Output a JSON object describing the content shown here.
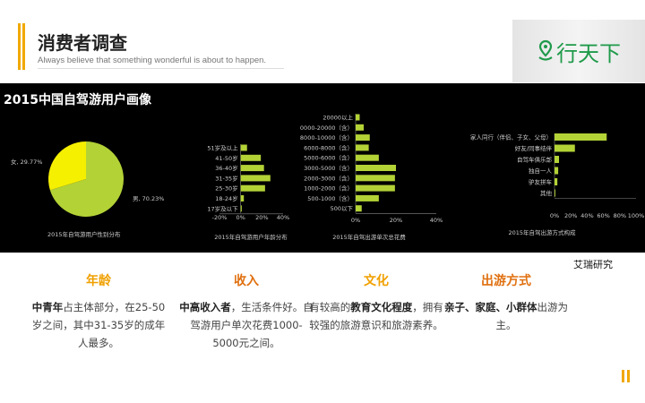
{
  "header": {
    "title": "消费者调查",
    "subtitle": "Always believe that something wonderful is about to happen.",
    "logo_text": "行天下",
    "accent": "#f0a800",
    "logo_color": "#1f9a4a"
  },
  "panel": {
    "title": "2015中国自驾游用户画像"
  },
  "chart_data": [
    {
      "type": "pie",
      "title": "2015年自驾游用户性别分布",
      "slices": [
        {
          "label": "女, 29.77%",
          "name": "女",
          "value": 29.77,
          "color": "#f5ef00"
        },
        {
          "label": "男, 70.23%",
          "name": "男",
          "value": 70.23,
          "color": "#b3d236"
        }
      ]
    },
    {
      "type": "bar",
      "orientation": "horizontal",
      "title": "2015年自驾游用户年龄分布",
      "categories": [
        "51岁及以上",
        "41-50岁",
        "36-40岁",
        "31-35岁",
        "25-30岁",
        "18-24岁",
        "17岁及以下"
      ],
      "values": [
        6,
        19,
        22,
        28,
        23,
        3,
        1
      ],
      "xlim": [
        -20,
        40
      ],
      "xticks": [
        "-20%",
        "0%",
        "20%",
        "40%"
      ],
      "color": "#b3d236"
    },
    {
      "type": "bar",
      "orientation": "horizontal",
      "title": "2015年自驾出游单次总花费",
      "categories": [
        "20000以上",
        "0000-20000（含）",
        "8000-10000（含）",
        "6000-8000（含）",
        "5000-6000（含）",
        "3000-5000（含）",
        "2000-3000（含）",
        "1000-2000（含）",
        "500-1000（含）",
        "500以下"
      ],
      "values": [
        2,
        4,
        7,
        6.5,
        11.5,
        20,
        19.5,
        19.5,
        11.5,
        3
      ],
      "xlim": [
        0,
        40
      ],
      "xticks": [
        "0%",
        "20%",
        "40%"
      ],
      "color": "#b3d236"
    },
    {
      "type": "bar",
      "orientation": "horizontal",
      "title": "2015年自驾出游方式构成",
      "categories": [
        "家人同行（伴侣、子女、父母）",
        "好友/同事结伴",
        "自驾车俱乐部",
        "独自一人",
        "驴友拼车",
        "其他"
      ],
      "values": [
        64,
        25,
        5.5,
        4.5,
        3.5,
        1
      ],
      "xlim": [
        0,
        100
      ],
      "xticks": [
        "0%",
        "20%",
        "40%",
        "60%",
        "80%",
        "100%"
      ],
      "color": "#b3d236"
    }
  ],
  "source": "艾瑞研究",
  "columns": [
    {
      "heading": "年龄",
      "parts": [
        [
          "中青年",
          true
        ],
        [
          "占主体部分，在25-50岁之间，其中31-35岁的成年人最多。",
          false
        ]
      ]
    },
    {
      "heading": "收入",
      "parts": [
        [
          "中高收入者",
          true
        ],
        [
          "，生活条件好。自驾游用户单次花费1000-5000元之间。",
          false
        ]
      ]
    },
    {
      "heading": "文化",
      "parts": [
        [
          "有较高的",
          false
        ],
        [
          "教育文化程度",
          true
        ],
        [
          "，拥有较强的旅游意识和旅游素养。",
          false
        ]
      ]
    },
    {
      "heading": "出游方式",
      "parts": [
        [
          "亲子、家庭、小群体",
          true
        ],
        [
          "出游为主。",
          false
        ]
      ]
    }
  ]
}
